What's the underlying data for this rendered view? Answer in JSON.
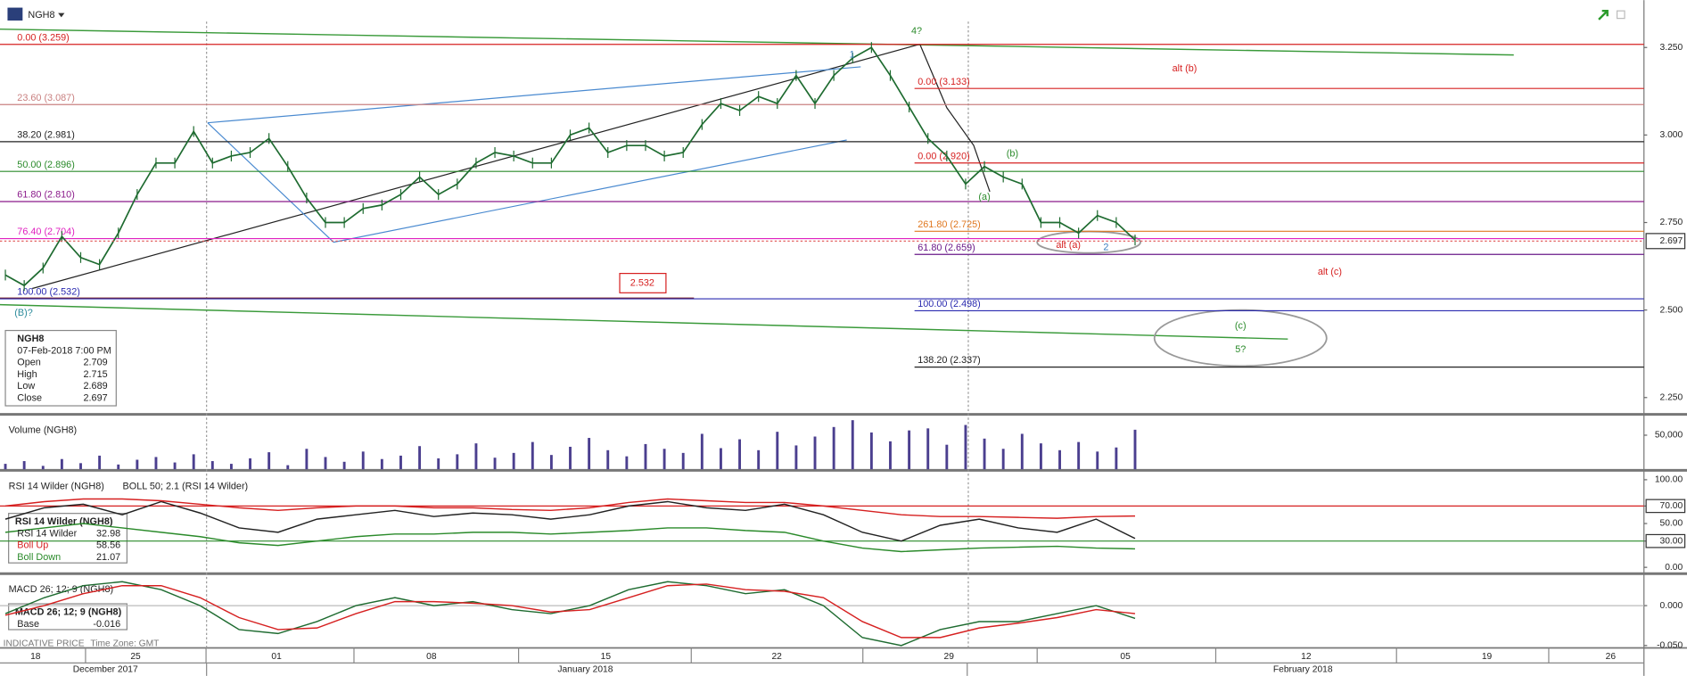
{
  "header": {
    "symbol": "NGH8"
  },
  "readout": {
    "symbol": "NGH8",
    "datetime": "07-Feb-2018 7:00 PM",
    "rows": [
      {
        "label": "Open",
        "value": 2.709
      },
      {
        "label": "High",
        "value": 2.715
      },
      {
        "label": "Low",
        "value": 2.689
      },
      {
        "label": "Close",
        "value": 2.697
      }
    ]
  },
  "xaxis": {
    "days": [
      "18",
      "25",
      "01",
      "08",
      "15",
      "22",
      "29",
      "05",
      "12",
      "19",
      "26"
    ],
    "months": [
      "December 2017",
      "January 2018",
      "February 2018"
    ],
    "footer": [
      "INDICATIVE PRICE",
      "Time Zone: GMT"
    ]
  },
  "chart_data": [
    {
      "type": "line",
      "title": "NGH8",
      "color": "#1e6b30",
      "values": [
        2.6,
        2.57,
        2.62,
        2.71,
        2.65,
        2.63,
        2.72,
        2.83,
        2.92,
        2.92,
        3.01,
        2.92,
        2.94,
        2.95,
        2.99,
        2.91,
        2.82,
        2.75,
        2.75,
        2.79,
        2.8,
        2.83,
        2.88,
        2.83,
        2.86,
        2.92,
        2.95,
        2.94,
        2.92,
        2.92,
        3.0,
        3.02,
        2.95,
        2.97,
        2.97,
        2.94,
        2.95,
        3.03,
        3.09,
        3.07,
        3.11,
        3.09,
        3.17,
        3.09,
        3.17,
        3.22,
        3.25,
        3.17,
        3.08,
        2.99,
        2.94,
        2.86,
        2.91,
        2.88,
        2.86,
        2.75,
        2.75,
        2.72,
        2.77,
        2.75,
        2.7
      ],
      "ylim": [
        2.208,
        3.37
      ],
      "yticks": [
        {
          "value": 3.25,
          "label": "3.250"
        },
        {
          "value": 3.0,
          "label": "3.000"
        },
        {
          "value": 2.75,
          "label": "2.750"
        },
        {
          "value": 2.5,
          "label": "2.500"
        },
        {
          "value": 2.25,
          "label": "2.250"
        }
      ],
      "last": 2.697,
      "fib_left": [
        {
          "value": 3.259,
          "label": "0.00 (3.259)",
          "color": "#d62020"
        },
        {
          "value": 3.087,
          "label": "23.60 (3.087)",
          "color": "#c98080"
        },
        {
          "value": 2.981,
          "label": "38.20 (2.981)",
          "color": "#222222"
        },
        {
          "value": 2.896,
          "label": "50.00 (2.896)",
          "color": "#2a8a2a"
        },
        {
          "value": 2.81,
          "label": "61.80 (2.810)",
          "color": "#8a1a8a"
        },
        {
          "value": 2.704,
          "label": "76.40 (2.704)",
          "color": "#e020c0"
        },
        {
          "value": 2.532,
          "label": "100.00 (2.532)",
          "color": "#2a2ab0"
        }
      ],
      "fib_right": [
        {
          "value": 3.133,
          "label": "0.00 (3.133)",
          "color": "#d62020"
        },
        {
          "value": 2.92,
          "label": "0.00 (2.920)",
          "color": "#d62020"
        },
        {
          "value": 2.725,
          "label": "261.80 (2.725)",
          "color": "#e07820"
        },
        {
          "value": 2.659,
          "label": "61.80 (2.659)",
          "color": "#6a1a8a"
        },
        {
          "value": 2.498,
          "label": "100.00 (2.498)",
          "color": "#2a2ab0"
        },
        {
          "value": 2.337,
          "label": "138.20 (2.337)",
          "color": "#222222"
        }
      ],
      "annotations": [
        {
          "text": "4?",
          "color": "#2a8a2a"
        },
        {
          "text": "1",
          "color": "#3a7fc0"
        },
        {
          "text": "2",
          "color": "#3a7fc0"
        },
        {
          "text": "(b)",
          "color": "#2a8a2a"
        },
        {
          "text": "(a)",
          "color": "#2a8a2a"
        },
        {
          "text": "alt (b)",
          "color": "#d62020"
        },
        {
          "text": "alt (a)",
          "color": "#d62020"
        },
        {
          "text": "alt (c)",
          "color": "#d62020"
        },
        {
          "text": "(c)",
          "color": "#2a8a2a"
        },
        {
          "text": "5?",
          "color": "#2a8a2a"
        },
        {
          "text": "(B)?",
          "color": "#2a8a9a"
        },
        {
          "text": "2.532",
          "color": "#d62020"
        }
      ]
    },
    {
      "type": "bar",
      "title": "Volume (NGH8)",
      "color": "#4b3f8f",
      "values": [
        8000,
        12000,
        5000,
        15000,
        9000,
        20000,
        7000,
        14000,
        18000,
        10000,
        22000,
        12000,
        8000,
        16000,
        25000,
        6000,
        30000,
        18000,
        11000,
        26000,
        15000,
        20000,
        34000,
        16000,
        22000,
        38000,
        17000,
        24000,
        40000,
        21000,
        33000,
        46000,
        28000,
        19000,
        37000,
        30000,
        24000,
        52000,
        31000,
        44000,
        28000,
        55000,
        35000,
        48000,
        62000,
        72000,
        54000,
        41000,
        57000,
        60000,
        36000,
        65000,
        45000,
        30000,
        52000,
        38000,
        28000,
        40000,
        26000,
        32000,
        58000
      ],
      "ylim": [
        0,
        72600
      ],
      "yticks": [
        {
          "value": 50000,
          "label": "50,000"
        }
      ]
    },
    {
      "type": "line",
      "title": "RSI 14 Wilder (NGH8)",
      "subtitle": "BOLL 50; 2.1 (RSI 14 Wilder)",
      "series": [
        {
          "name": "RSI 14 Wilder",
          "color": "#222222",
          "values": [
            55,
            68,
            72,
            60,
            75,
            62,
            45,
            40,
            55,
            60,
            65,
            58,
            62,
            60,
            55,
            60,
            70,
            75,
            68,
            65,
            72,
            60,
            40,
            30,
            48,
            55,
            45,
            40,
            55,
            32.98
          ]
        },
        {
          "name": "Boll Up",
          "color": "#d62020",
          "values": [
            70,
            75,
            78,
            78,
            76,
            72,
            68,
            65,
            68,
            70,
            70,
            68,
            68,
            66,
            65,
            68,
            74,
            78,
            76,
            74,
            74,
            70,
            65,
            60,
            58,
            58,
            57,
            56,
            58,
            58.56
          ]
        },
        {
          "name": "Boll Down",
          "color": "#2a8a2a",
          "values": [
            40,
            45,
            50,
            45,
            40,
            35,
            28,
            25,
            30,
            35,
            38,
            38,
            40,
            40,
            38,
            40,
            42,
            45,
            45,
            42,
            40,
            30,
            22,
            18,
            20,
            22,
            23,
            24,
            22,
            21.07
          ]
        }
      ],
      "readout": [
        32.98,
        58.56,
        21.07
      ],
      "ylim": [
        -6,
        107
      ],
      "yticks": [
        {
          "value": 100,
          "label": "100.00"
        },
        {
          "value": 70,
          "label": "70.00"
        },
        {
          "value": 50,
          "label": "50.00"
        },
        {
          "value": 30,
          "label": "30.00"
        },
        {
          "value": 0,
          "label": "0.00"
        }
      ],
      "levels": [
        {
          "value": 70,
          "color": "#d62020"
        },
        {
          "value": 30,
          "color": "#2a8a2a"
        }
      ]
    },
    {
      "type": "line",
      "title": "MACD 26; 12; 9 (NGH8)",
      "series": [
        {
          "name": "Base",
          "color": "#1e6b30",
          "values": [
            -0.01,
            0.01,
            0.025,
            0.03,
            0.02,
            0.0,
            -0.03,
            -0.035,
            -0.02,
            0.0,
            0.01,
            0.0,
            0.005,
            -0.005,
            -0.01,
            0.0,
            0.02,
            0.03,
            0.025,
            0.015,
            0.02,
            0.0,
            -0.04,
            -0.05,
            -0.03,
            -0.02,
            -0.02,
            -0.01,
            0.0,
            -0.016
          ]
        },
        {
          "color": "#d62020",
          "values": [
            -0.012,
            0.0,
            0.015,
            0.025,
            0.025,
            0.01,
            -0.015,
            -0.03,
            -0.028,
            -0.01,
            0.005,
            0.005,
            0.003,
            0.0,
            -0.008,
            -0.005,
            0.01,
            0.025,
            0.027,
            0.02,
            0.018,
            0.01,
            -0.02,
            -0.04,
            -0.04,
            -0.028,
            -0.022,
            -0.015,
            -0.005,
            -0.01
          ]
        }
      ],
      "readout": [
        -0.016
      ],
      "ylim": [
        -0.053,
        0.036
      ],
      "yticks": [
        {
          "value": 0,
          "label": "0.000"
        },
        {
          "value": -0.05,
          "label": "-0.050"
        }
      ]
    }
  ]
}
